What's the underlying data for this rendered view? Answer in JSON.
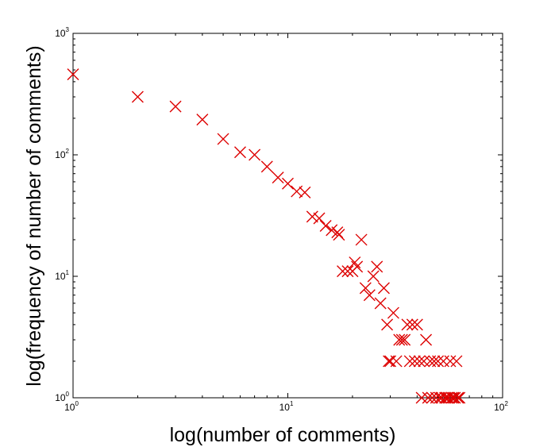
{
  "chart_data": {
    "type": "scatter",
    "title": "",
    "xlabel": "log(number of comments)",
    "ylabel": "log(frequency of number of comments)",
    "xscale": "log",
    "yscale": "log",
    "xlim": [
      1,
      100
    ],
    "ylim": [
      1,
      1000
    ],
    "grid": false,
    "marker": "x",
    "marker_color": "#dd0000",
    "x_ticks": [
      {
        "value": 1,
        "base": "10",
        "exp": "0"
      },
      {
        "value": 10,
        "base": "10",
        "exp": "1"
      },
      {
        "value": 100,
        "base": "10",
        "exp": "2"
      }
    ],
    "y_ticks": [
      {
        "value": 1,
        "base": "10",
        "exp": "0"
      },
      {
        "value": 10,
        "base": "10",
        "exp": "1"
      },
      {
        "value": 100,
        "base": "10",
        "exp": "2"
      },
      {
        "value": 1000,
        "base": "10",
        "exp": "3"
      }
    ],
    "points": [
      [
        1,
        460
      ],
      [
        2,
        300
      ],
      [
        3,
        250
      ],
      [
        4,
        195
      ],
      [
        5,
        135
      ],
      [
        6,
        105
      ],
      [
        7,
        100
      ],
      [
        8,
        80
      ],
      [
        9,
        65
      ],
      [
        10,
        58
      ],
      [
        11,
        50
      ],
      [
        12,
        49
      ],
      [
        13,
        31
      ],
      [
        14,
        30
      ],
      [
        15,
        26
      ],
      [
        16,
        24
      ],
      [
        17,
        23
      ],
      [
        17.3,
        22
      ],
      [
        18,
        11
      ],
      [
        19,
        11
      ],
      [
        20,
        11
      ],
      [
        20.5,
        13
      ],
      [
        21,
        12
      ],
      [
        22,
        20
      ],
      [
        23,
        8
      ],
      [
        24,
        7
      ],
      [
        25,
        10
      ],
      [
        26,
        12
      ],
      [
        27,
        6
      ],
      [
        28,
        8
      ],
      [
        29,
        4
      ],
      [
        29.5,
        2
      ],
      [
        30,
        2
      ],
      [
        31,
        5
      ],
      [
        32,
        2
      ],
      [
        33,
        3
      ],
      [
        34,
        3
      ],
      [
        35,
        3
      ],
      [
        36,
        4
      ],
      [
        37,
        2
      ],
      [
        38,
        4
      ],
      [
        39,
        2
      ],
      [
        40,
        4
      ],
      [
        41,
        2
      ],
      [
        42,
        1
      ],
      [
        43,
        2
      ],
      [
        44,
        3
      ],
      [
        45,
        1
      ],
      [
        46,
        2
      ],
      [
        47,
        1
      ],
      [
        48,
        2
      ],
      [
        49,
        1
      ],
      [
        50,
        2
      ],
      [
        51,
        1
      ],
      [
        52,
        1
      ],
      [
        53,
        2
      ],
      [
        54,
        1
      ],
      [
        55,
        1
      ],
      [
        56,
        1
      ],
      [
        57,
        2
      ],
      [
        58,
        1
      ],
      [
        59,
        1
      ],
      [
        60,
        1
      ],
      [
        61,
        2
      ],
      [
        62,
        1
      ],
      [
        63,
        1
      ]
    ]
  }
}
